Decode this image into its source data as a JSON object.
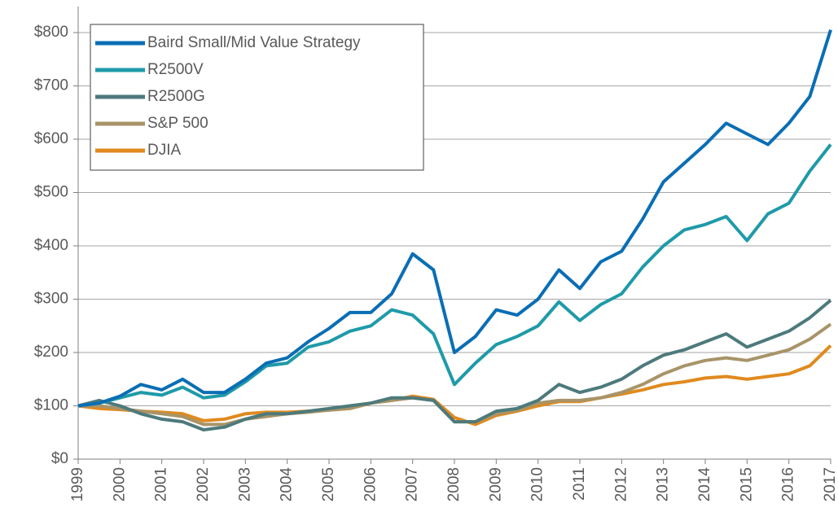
{
  "chart_data": {
    "type": "line",
    "x": [
      1999,
      1999.5,
      2000,
      2000.5,
      2001,
      2001.5,
      2002,
      2002.5,
      2003,
      2003.5,
      2004,
      2004.5,
      2005,
      2005.5,
      2006,
      2006.5,
      2007,
      2007.5,
      2008,
      2008.5,
      2009,
      2009.5,
      2010,
      2010.5,
      2011,
      2011.5,
      2012,
      2012.5,
      2013,
      2013.5,
      2014,
      2014.5,
      2015,
      2015.5,
      2016,
      2016.5,
      2017
    ],
    "xlim": [
      1999,
      2017
    ],
    "xticks": [
      1999,
      2000,
      2001,
      2002,
      2003,
      2004,
      2005,
      2006,
      2007,
      2008,
      2009,
      2010,
      2011,
      2012,
      2013,
      2014,
      2015,
      2016,
      2017
    ],
    "ylim": [
      0,
      800
    ],
    "yticks": [
      {
        "value": 0,
        "label": "$0"
      },
      {
        "value": 100,
        "label": "$100"
      },
      {
        "value": 200,
        "label": "$200"
      },
      {
        "value": 300,
        "label": "$300"
      },
      {
        "value": 400,
        "label": "$400"
      },
      {
        "value": 500,
        "label": "$500"
      },
      {
        "value": 600,
        "label": "$600"
      },
      {
        "value": 700,
        "label": "$700"
      },
      {
        "value": 800,
        "label": "$800"
      }
    ],
    "grid": true,
    "legend": "upper left",
    "series": [
      {
        "name": "Baird Small/Mid Value Strategy",
        "color": "#0a6eb4",
        "values": [
          100,
          105,
          118,
          140,
          130,
          150,
          125,
          125,
          150,
          180,
          190,
          220,
          245,
          275,
          275,
          310,
          385,
          355,
          200,
          230,
          280,
          270,
          300,
          355,
          320,
          370,
          390,
          450,
          520,
          555,
          590,
          630,
          610,
          590,
          630,
          680,
          805
        ]
      },
      {
        "name": "R2500V",
        "color": "#1f9aa8",
        "values": [
          100,
          105,
          115,
          125,
          120,
          135,
          115,
          120,
          145,
          175,
          180,
          210,
          220,
          240,
          250,
          280,
          270,
          235,
          140,
          180,
          215,
          230,
          250,
          295,
          260,
          290,
          310,
          360,
          400,
          430,
          440,
          455,
          410,
          460,
          480,
          540,
          590
        ]
      },
      {
        "name": "R2500G",
        "color": "#4d7a7c",
        "values": [
          100,
          110,
          100,
          85,
          75,
          70,
          55,
          60,
          75,
          85,
          85,
          90,
          95,
          100,
          105,
          115,
          115,
          110,
          70,
          70,
          90,
          95,
          110,
          140,
          125,
          135,
          150,
          175,
          195,
          205,
          220,
          235,
          210,
          225,
          240,
          265,
          298
        ]
      },
      {
        "name": "S&P 500",
        "color": "#a89468",
        "values": [
          100,
          100,
          95,
          90,
          85,
          80,
          65,
          65,
          75,
          80,
          85,
          88,
          92,
          95,
          105,
          110,
          115,
          110,
          70,
          70,
          85,
          92,
          105,
          110,
          110,
          115,
          125,
          140,
          160,
          175,
          185,
          190,
          185,
          195,
          205,
          225,
          253
        ]
      },
      {
        "name": "DJIA",
        "color": "#e08a1e",
        "values": [
          100,
          95,
          93,
          90,
          88,
          85,
          72,
          75,
          85,
          88,
          88,
          90,
          92,
          95,
          105,
          110,
          118,
          112,
          78,
          65,
          82,
          90,
          100,
          108,
          108,
          115,
          122,
          130,
          140,
          145,
          152,
          155,
          150,
          155,
          160,
          175,
          213
        ]
      }
    ]
  }
}
